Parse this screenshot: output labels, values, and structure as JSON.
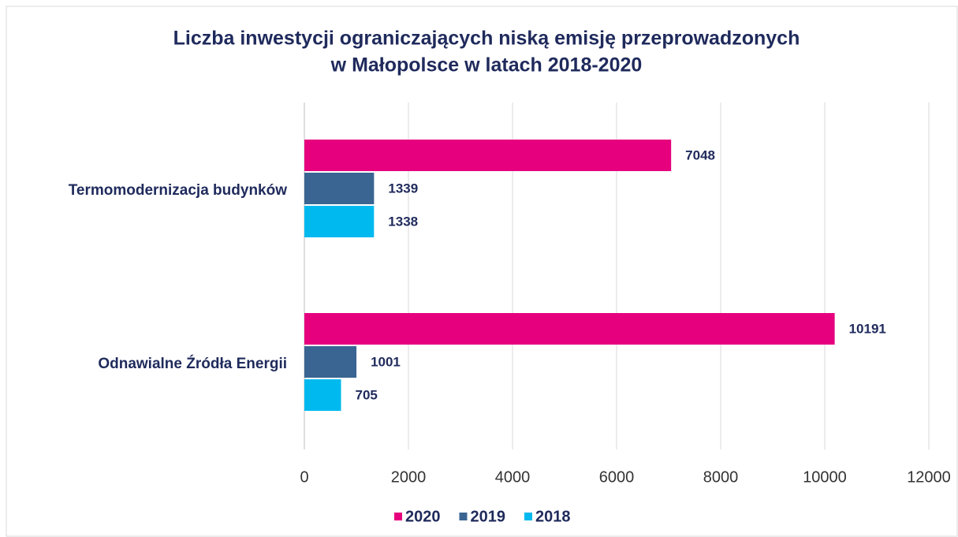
{
  "chart_data": {
    "type": "barh",
    "title": [
      "Liczba inwestycji ograniczających niską emisję przeprowadzonych",
      "w Małopolsce w latach 2018-2020"
    ],
    "categories": [
      "Termomodernizacja budynków",
      "Odnawialne Źródła Energii"
    ],
    "series": [
      {
        "name": "2020",
        "color": "#e6007e",
        "values": [
          7048,
          10191
        ]
      },
      {
        "name": "2019",
        "color": "#3a6592",
        "values": [
          1339,
          1001
        ]
      },
      {
        "name": "2018",
        "color": "#00b9ef",
        "values": [
          1338,
          705
        ]
      }
    ],
    "xlim": [
      0,
      12000
    ],
    "xticks": [
      0,
      2000,
      4000,
      6000,
      8000,
      10000,
      12000
    ],
    "grid": true,
    "legend": "bottom"
  }
}
